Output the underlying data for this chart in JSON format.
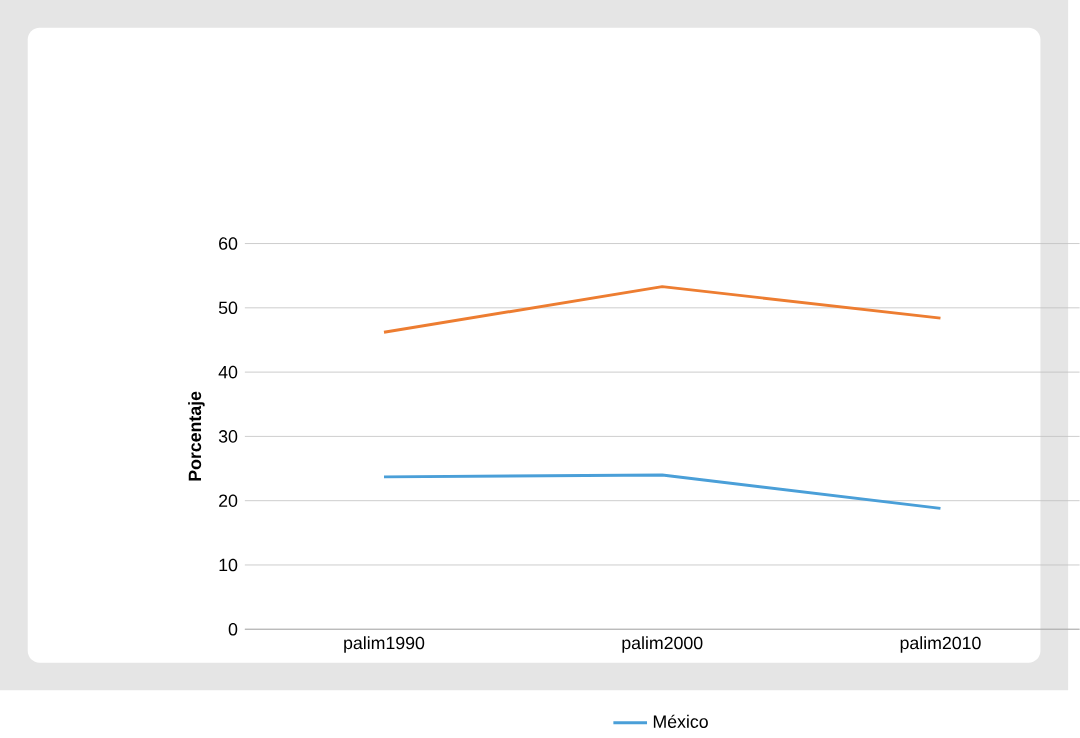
{
  "chart_data": {
    "type": "line",
    "ylabel": "Porcentaje",
    "categories": [
      "palim1990",
      "palim2000",
      "palim2010"
    ],
    "series": [
      {
        "color": "#ed7d31",
        "values": [
          46.2,
          53.3,
          48.4
        ]
      },
      {
        "name": "México",
        "color": "#4a9fd8",
        "values": [
          23.7,
          24.0,
          18.8
        ]
      }
    ],
    "ylim": [
      0,
      60
    ],
    "yticks": [
      0,
      10,
      20,
      30,
      40,
      50,
      60
    ],
    "grid": "y",
    "legend": "bottom"
  }
}
